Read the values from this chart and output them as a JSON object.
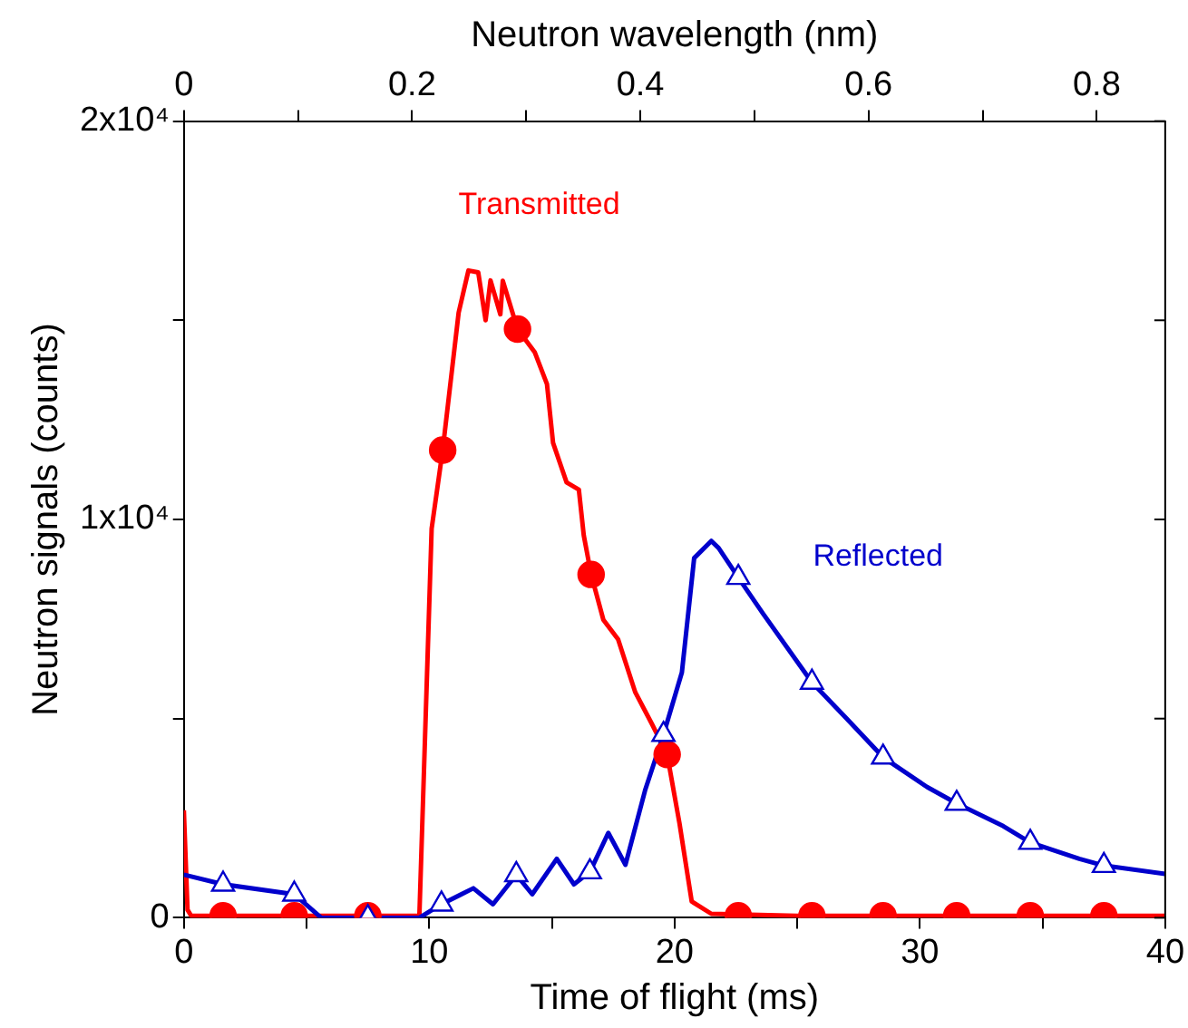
{
  "chart_data": {
    "type": "line",
    "xlabel": "Time of flight (ms)",
    "ylabel": "Neutron signals (counts)",
    "x2label": "Neutron wavelength (nm)",
    "xlim": [
      0,
      40
    ],
    "xticks": [
      0,
      {
        "value": 5,
        "label": null
      },
      10,
      {
        "value": 15,
        "label": null
      },
      20,
      {
        "value": 25,
        "label": null
      },
      30,
      {
        "value": 35,
        "label": null
      },
      40
    ],
    "x2lim": [
      0,
      0.86
    ],
    "x2ticks": [
      0,
      {
        "value": 0.1,
        "label": null
      },
      0.2,
      {
        "value": 0.3,
        "label": null
      },
      0.4,
      {
        "value": 0.5,
        "label": null
      },
      0.6,
      {
        "value": 0.7,
        "label": null
      },
      0.8
    ],
    "ylim": [
      0,
      20000
    ],
    "yticks": [
      0,
      {
        "value": 5000,
        "label": null
      },
      {
        "value": 10000,
        "label": "1x10⁴"
      },
      {
        "value": 15000,
        "label": null
      },
      {
        "value": 20000,
        "label": "2x10⁴"
      }
    ],
    "grid": false,
    "legend": false,
    "line_style": "solid",
    "series": [
      {
        "name": "Transmitted",
        "color": "#ff0000",
        "marker": "none",
        "x": [
          0,
          0.15,
          0.3,
          5,
          9.6,
          10.1,
          10.55,
          11.2,
          11.6,
          12.0,
          12.3,
          12.5,
          12.9,
          13.0,
          13.6,
          14.3,
          14.8,
          15.05,
          15.6,
          16.1,
          16.3,
          16.6,
          17.1,
          17.7,
          18.4,
          19.1,
          19.7,
          20.2,
          20.7,
          21.5,
          25,
          30,
          35,
          40
        ],
        "values": [
          2700,
          200,
          50,
          50,
          50,
          9770,
          11740,
          15190,
          16250,
          16200,
          15000,
          16000,
          15150,
          15990,
          14780,
          14200,
          13400,
          11920,
          10930,
          10750,
          9600,
          8620,
          7480,
          6990,
          5660,
          4840,
          4100,
          2380,
          410,
          100,
          50,
          50,
          50,
          50
        ]
      },
      {
        "name": "Reflected",
        "color": "#0000cc",
        "marker": "none",
        "x": [
          0,
          1.6,
          4.5,
          5.6,
          9.6,
          10.5,
          11.8,
          12.6,
          13.55,
          14.2,
          15.2,
          15.9,
          16.55,
          17.3,
          18.0,
          18.8,
          19.55,
          20.3,
          20.8,
          21.5,
          21.8,
          22.6,
          23.6,
          25.6,
          27.0,
          28.5,
          30.3,
          31.5,
          33.4,
          34.5,
          36.5,
          37.5,
          40
        ],
        "values": [
          1080,
          840,
          590,
          0,
          0,
          340,
          740,
          340,
          1080,
          590,
          1480,
          840,
          1150,
          2130,
          1330,
          3200,
          4600,
          6160,
          9030,
          9460,
          9280,
          8540,
          7640,
          5910,
          5010,
          4030,
          3280,
          2870,
          2300,
          1890,
          1480,
          1310,
          1100
        ]
      },
      {
        "type": "scatter",
        "color": "#ff0000",
        "marker": "circle",
        "x": [
          1.6,
          4.5,
          7.5,
          10.55,
          13.6,
          16.6,
          19.7,
          22.6,
          25.6,
          28.5,
          31.5,
          34.5,
          37.5
        ],
        "values": [
          50,
          50,
          50,
          11740,
          14780,
          8620,
          4100,
          50,
          50,
          50,
          50,
          50,
          50
        ]
      },
      {
        "type": "scatter",
        "color": "#0000cc",
        "marker": "triangle",
        "x": [
          1.6,
          4.5,
          7.5,
          10.5,
          13.55,
          16.55,
          19.55,
          22.6,
          25.6,
          28.5,
          31.5,
          34.5,
          37.5
        ],
        "values": [
          840,
          590,
          0,
          340,
          1080,
          1150,
          4600,
          8540,
          5910,
          4030,
          2870,
          1890,
          1310
        ]
      }
    ]
  }
}
